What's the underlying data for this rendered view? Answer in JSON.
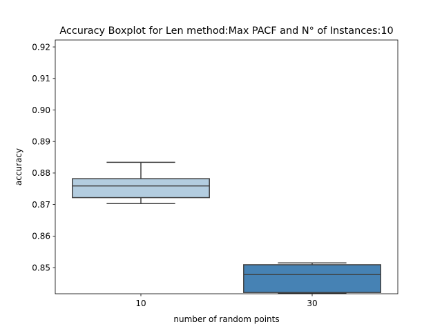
{
  "chart_data": {
    "type": "box",
    "title": "Accuracy Boxplot for Len method:Max PACF and N° of Instances:10",
    "xlabel": "number of random points",
    "ylabel": "accuracy",
    "ylim": [
      0.8417,
      0.9222
    ],
    "yticks": [
      0.85,
      0.86,
      0.87,
      0.88,
      0.89,
      0.9,
      0.91,
      0.92
    ],
    "ytick_labels": [
      "0.85",
      "0.86",
      "0.87",
      "0.88",
      "0.89",
      "0.90",
      "0.91",
      "0.92"
    ],
    "categories": [
      "10",
      "30"
    ],
    "grid": false,
    "boxes": [
      {
        "category": "10",
        "whisker_low": 0.8703,
        "q1": 0.8722,
        "median": 0.8759,
        "q3": 0.8782,
        "whisker_high": 0.8834,
        "color": "#b3cde0"
      },
      {
        "category": "30",
        "whisker_low": 0.8419,
        "q1": 0.8421,
        "median": 0.8478,
        "q3": 0.8509,
        "whisker_high": 0.8515,
        "color": "#4682b4"
      }
    ],
    "colors": {
      "line": "#3f3f3f",
      "axis": "#000000"
    }
  }
}
